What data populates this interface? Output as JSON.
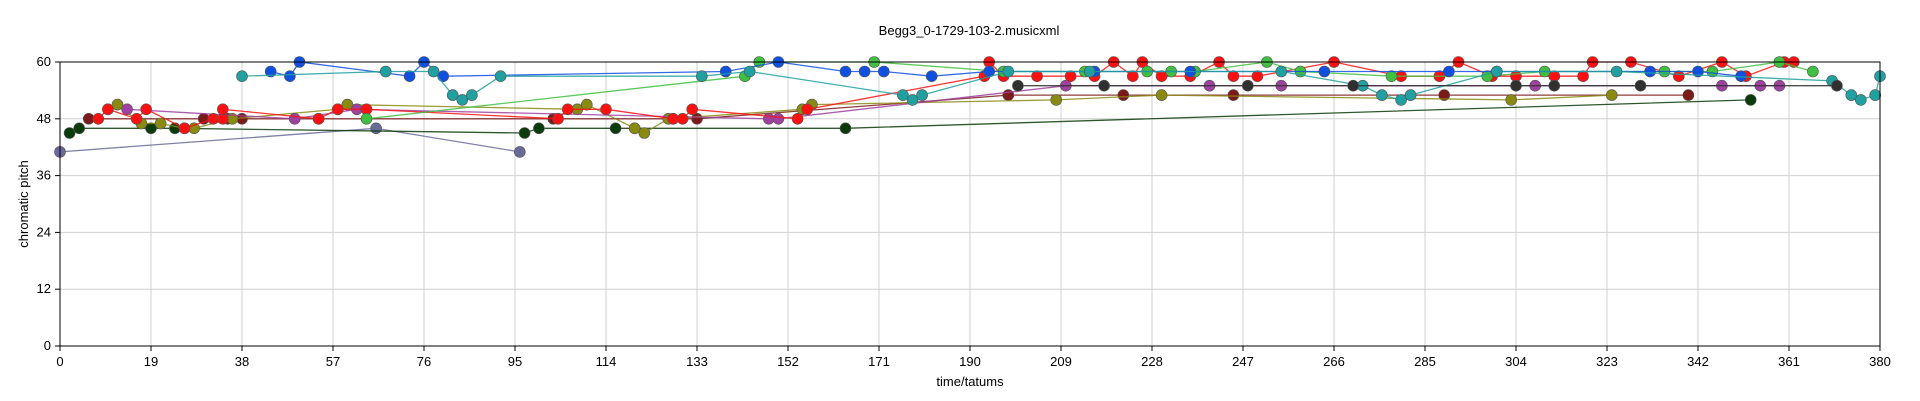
{
  "chart_data": {
    "type": "scatter",
    "title": "Begg3_0-1729-103-2.musicxml",
    "xlabel": "time/tatums",
    "ylabel": "chromatic pitch",
    "xlim": [
      0,
      380
    ],
    "ylim": [
      0,
      60
    ],
    "xticks": [
      0,
      19,
      38,
      57,
      76,
      95,
      114,
      133,
      152,
      171,
      190,
      209,
      228,
      247,
      266,
      285,
      304,
      323,
      342,
      361,
      380
    ],
    "yticks": [
      0,
      12,
      24,
      36,
      48,
      60
    ],
    "grid": true,
    "series": [
      {
        "color": "#6a6a9a",
        "points": [
          [
            0,
            41
          ],
          [
            66,
            46
          ],
          [
            96,
            41
          ]
        ]
      },
      {
        "color": "#0b3b0b",
        "points": [
          [
            2,
            45
          ],
          [
            4,
            46
          ],
          [
            19,
            46
          ],
          [
            24,
            46
          ],
          [
            97,
            45
          ],
          [
            100,
            46
          ],
          [
            116,
            46
          ],
          [
            120,
            46
          ],
          [
            164,
            46
          ],
          [
            353,
            52
          ]
        ]
      },
      {
        "color": "#7c1a1a",
        "points": [
          [
            6,
            48
          ],
          [
            30,
            48
          ],
          [
            35,
            48
          ],
          [
            38,
            48
          ],
          [
            54,
            48
          ],
          [
            103,
            48
          ],
          [
            128,
            48
          ],
          [
            133,
            48
          ],
          [
            198,
            53
          ],
          [
            222,
            53
          ],
          [
            245,
            53
          ],
          [
            289,
            53
          ],
          [
            340,
            53
          ]
        ]
      },
      {
        "color": "#8a8a10",
        "points": [
          [
            10,
            50
          ],
          [
            12,
            51
          ],
          [
            17,
            47
          ],
          [
            21,
            47
          ],
          [
            26,
            46
          ],
          [
            28,
            46
          ],
          [
            36,
            48
          ],
          [
            58,
            50
          ],
          [
            60,
            51
          ],
          [
            108,
            50
          ],
          [
            110,
            51
          ],
          [
            120,
            46
          ],
          [
            122,
            45
          ],
          [
            127,
            48
          ],
          [
            155,
            50
          ],
          [
            157,
            51
          ],
          [
            208,
            52
          ],
          [
            230,
            53
          ],
          [
            303,
            52
          ],
          [
            324,
            53
          ]
        ]
      },
      {
        "color": "#a040a0",
        "points": [
          [
            14,
            50
          ],
          [
            49,
            48
          ],
          [
            62,
            50
          ],
          [
            148,
            48
          ],
          [
            150,
            48
          ],
          [
            210,
            55
          ],
          [
            240,
            55
          ],
          [
            255,
            55
          ],
          [
            308,
            55
          ],
          [
            347,
            55
          ],
          [
            355,
            55
          ],
          [
            359,
            55
          ]
        ]
      },
      {
        "color": "#ff1010",
        "points": [
          [
            8,
            48
          ],
          [
            10,
            50
          ],
          [
            16,
            48
          ],
          [
            18,
            50
          ],
          [
            26,
            46
          ],
          [
            32,
            48
          ],
          [
            34,
            48
          ],
          [
            34,
            50
          ],
          [
            54,
            48
          ],
          [
            58,
            50
          ],
          [
            64,
            50
          ],
          [
            104,
            48
          ],
          [
            106,
            50
          ],
          [
            114,
            50
          ],
          [
            128,
            48
          ],
          [
            130,
            48
          ],
          [
            132,
            50
          ],
          [
            154,
            48
          ],
          [
            156,
            50
          ],
          [
            193,
            57
          ],
          [
            194,
            60
          ],
          [
            197,
            57
          ],
          [
            204,
            57
          ],
          [
            211,
            57
          ],
          [
            216,
            57
          ],
          [
            220,
            60
          ],
          [
            224,
            57
          ],
          [
            226,
            60
          ],
          [
            230,
            57
          ],
          [
            236,
            57
          ],
          [
            242,
            60
          ],
          [
            245,
            57
          ],
          [
            250,
            57
          ],
          [
            266,
            60
          ],
          [
            280,
            57
          ],
          [
            288,
            57
          ],
          [
            292,
            60
          ],
          [
            299,
            57
          ],
          [
            304,
            57
          ],
          [
            312,
            57
          ],
          [
            318,
            57
          ],
          [
            320,
            60
          ],
          [
            328,
            60
          ],
          [
            338,
            57
          ],
          [
            347,
            60
          ],
          [
            352,
            57
          ],
          [
            360,
            60
          ],
          [
            362,
            60
          ]
        ]
      },
      {
        "color": "#40c040",
        "points": [
          [
            64,
            48
          ],
          [
            143,
            57
          ],
          [
            146,
            60
          ],
          [
            170,
            60
          ],
          [
            197,
            58
          ],
          [
            214,
            58
          ],
          [
            227,
            58
          ],
          [
            232,
            58
          ],
          [
            237,
            58
          ],
          [
            252,
            60
          ],
          [
            259,
            58
          ],
          [
            278,
            57
          ],
          [
            298,
            57
          ],
          [
            310,
            58
          ],
          [
            335,
            58
          ],
          [
            345,
            58
          ],
          [
            359,
            60
          ],
          [
            366,
            58
          ]
        ]
      },
      {
        "color": "#1050e0",
        "points": [
          [
            44,
            58
          ],
          [
            48,
            57
          ],
          [
            50,
            60
          ],
          [
            73,
            57
          ],
          [
            76,
            60
          ],
          [
            80,
            57
          ],
          [
            139,
            58
          ],
          [
            150,
            60
          ],
          [
            164,
            58
          ],
          [
            168,
            58
          ],
          [
            172,
            58
          ],
          [
            182,
            57
          ],
          [
            194,
            58
          ],
          [
            216,
            58
          ],
          [
            236,
            58
          ],
          [
            264,
            58
          ],
          [
            290,
            58
          ],
          [
            300,
            58
          ],
          [
            332,
            58
          ],
          [
            342,
            58
          ],
          [
            351,
            57
          ]
        ]
      },
      {
        "color": "#20a0a0",
        "points": [
          [
            38,
            57
          ],
          [
            68,
            58
          ],
          [
            78,
            58
          ],
          [
            82,
            53
          ],
          [
            84,
            52
          ],
          [
            86,
            53
          ],
          [
            92,
            57
          ],
          [
            134,
            57
          ],
          [
            144,
            58
          ],
          [
            176,
            53
          ],
          [
            178,
            52
          ],
          [
            180,
            53
          ],
          [
            198,
            58
          ],
          [
            215,
            58
          ],
          [
            255,
            58
          ],
          [
            272,
            55
          ],
          [
            276,
            53
          ],
          [
            280,
            52
          ],
          [
            282,
            53
          ],
          [
            300,
            58
          ],
          [
            325,
            58
          ],
          [
            370,
            56
          ],
          [
            374,
            53
          ],
          [
            376,
            52
          ],
          [
            379,
            53
          ],
          [
            380,
            57
          ]
        ]
      },
      {
        "color": "#303030",
        "points": [
          [
            200,
            55
          ],
          [
            218,
            55
          ],
          [
            248,
            55
          ],
          [
            270,
            55
          ],
          [
            304,
            55
          ],
          [
            312,
            55
          ],
          [
            330,
            55
          ],
          [
            371,
            55
          ]
        ]
      }
    ]
  }
}
